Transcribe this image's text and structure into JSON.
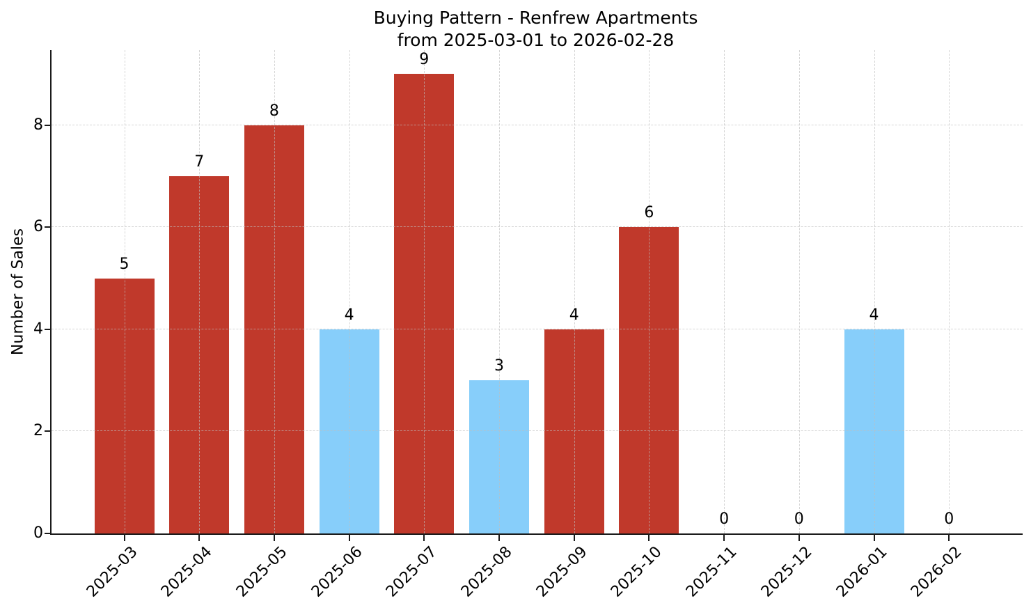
{
  "chart_data": {
    "type": "bar",
    "title": "Buying Pattern - Renfrew Apartments",
    "subtitle": "from 2025-03-01 to 2026-02-28",
    "xlabel": "",
    "ylabel": "Number of Sales",
    "categories": [
      "2025-03",
      "2025-04",
      "2025-05",
      "2025-06",
      "2025-07",
      "2025-08",
      "2025-09",
      "2025-10",
      "2025-11",
      "2025-12",
      "2026-01",
      "2026-02"
    ],
    "values": [
      5,
      7,
      8,
      4,
      9,
      3,
      4,
      6,
      0,
      0,
      4,
      0
    ],
    "value_labels": [
      "5",
      "7",
      "8",
      "4",
      "9",
      "3",
      "4",
      "6",
      "0",
      "0",
      "4",
      "0"
    ],
    "bar_colors": [
      "#c0392b",
      "#c0392b",
      "#c0392b",
      "#87cefa",
      "#c0392b",
      "#87cefa",
      "#c0392b",
      "#c0392b",
      "#c0392b",
      "#c0392b",
      "#87cefa",
      "#c0392b"
    ],
    "yticks": [
      0,
      2,
      4,
      6,
      8
    ],
    "ylim": [
      0,
      9.47
    ],
    "grid": true,
    "grid_style": "dashed",
    "legend": "none",
    "colors": {
      "bar_default": "#c0392b",
      "bar_highlight": "#87cefa",
      "axis": "#1a1a1a",
      "grid": "#bebebe",
      "text": "#000000",
      "background": "#ffffff"
    }
  }
}
